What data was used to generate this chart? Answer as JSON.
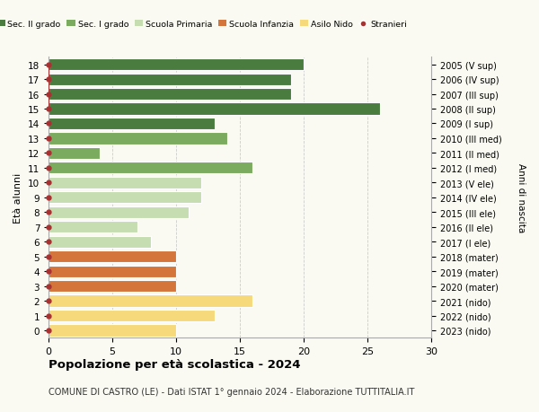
{
  "ages": [
    18,
    17,
    16,
    15,
    14,
    13,
    12,
    11,
    10,
    9,
    8,
    7,
    6,
    5,
    4,
    3,
    2,
    1,
    0
  ],
  "years": [
    "2005 (V sup)",
    "2006 (IV sup)",
    "2007 (III sup)",
    "2008 (II sup)",
    "2009 (I sup)",
    "2010 (III med)",
    "2011 (II med)",
    "2012 (I med)",
    "2013 (V ele)",
    "2014 (IV ele)",
    "2015 (III ele)",
    "2016 (II ele)",
    "2017 (I ele)",
    "2018 (mater)",
    "2019 (mater)",
    "2020 (mater)",
    "2021 (nido)",
    "2022 (nido)",
    "2023 (nido)"
  ],
  "values": [
    20,
    19,
    19,
    26,
    13,
    14,
    4,
    16,
    12,
    12,
    11,
    7,
    8,
    10,
    10,
    10,
    16,
    13,
    10
  ],
  "colors": [
    "#4a7c3f",
    "#4a7c3f",
    "#4a7c3f",
    "#4a7c3f",
    "#4a7c3f",
    "#7aab5e",
    "#7aab5e",
    "#7aab5e",
    "#c5ddb0",
    "#c5ddb0",
    "#c5ddb0",
    "#c5ddb0",
    "#c5ddb0",
    "#d4763b",
    "#d4763b",
    "#d4763b",
    "#f5d97a",
    "#f5d97a",
    "#f5d97a"
  ],
  "legend_labels": [
    "Sec. II grado",
    "Sec. I grado",
    "Scuola Primaria",
    "Scuola Infanzia",
    "Asilo Nido",
    "Stranieri"
  ],
  "legend_colors": [
    "#4a7c3f",
    "#7aab5e",
    "#c5ddb0",
    "#d4763b",
    "#f5d97a",
    "#a83232"
  ],
  "ylabel": "Età alunni",
  "right_label": "Anni di nascita",
  "title": "Popolazione per età scolastica - 2024",
  "subtitle": "COMUNE DI CASTRO (LE) - Dati ISTAT 1° gennaio 2024 - Elaborazione TUTTITALIA.IT",
  "xlim": [
    0,
    30
  ],
  "background_color": "#fafaf2",
  "bar_edge_color": "white",
  "stranieri_color": "#a83232",
  "grid_color": "#cccccc",
  "dot_color": "#a83232",
  "stranieri_line_ages": [
    15,
    16,
    17,
    18
  ],
  "stranieri_dot_age": 15
}
